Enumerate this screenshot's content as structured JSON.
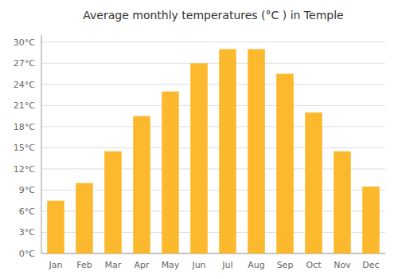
{
  "chart_data": {
    "type": "bar",
    "title": "Average monthly temperatures (°C ) in Temple",
    "categories": [
      "Jan",
      "Feb",
      "Mar",
      "Apr",
      "May",
      "Jun",
      "Jul",
      "Aug",
      "Sep",
      "Oct",
      "Nov",
      "Dec"
    ],
    "values": [
      7.5,
      10.0,
      14.5,
      19.5,
      23.0,
      27.0,
      29.0,
      29.0,
      25.5,
      20.0,
      14.5,
      9.5
    ],
    "color": "#FDB92E",
    "ylim": [
      0,
      31
    ],
    "yticks": [
      {
        "value": 0,
        "label": "0°C"
      },
      {
        "value": 3,
        "label": "3°C"
      },
      {
        "value": 6,
        "label": "6°C"
      },
      {
        "value": 9,
        "label": "9°C"
      },
      {
        "value": 12,
        "label": "12°C"
      },
      {
        "value": 15,
        "label": "15°C"
      },
      {
        "value": 18,
        "label": "18°C"
      },
      {
        "value": 21,
        "label": "21°C"
      },
      {
        "value": 24,
        "label": "24°C"
      },
      {
        "value": 27,
        "label": "27°C"
      },
      {
        "value": 30,
        "label": "30°C"
      }
    ],
    "grid": true
  }
}
